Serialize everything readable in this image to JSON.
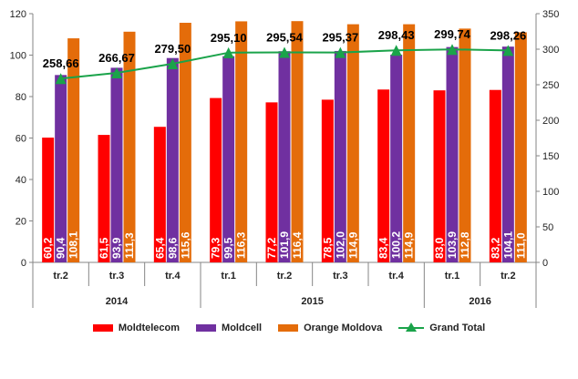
{
  "chart_data": {
    "type": "bar",
    "categories": [
      "tr.2",
      "tr.3",
      "tr.4",
      "tr.1",
      "tr.2",
      "tr.3",
      "tr.4",
      "tr.1",
      "tr.2"
    ],
    "year_groups": [
      {
        "label": "2014",
        "span": [
          0,
          2
        ]
      },
      {
        "label": "2015",
        "span": [
          3,
          6
        ]
      },
      {
        "label": "2016",
        "span": [
          7,
          8
        ]
      }
    ],
    "series": [
      {
        "name": "Moldtelecom",
        "kind": "bar",
        "color": "#ff0000",
        "values": [
          60.2,
          61.5,
          65.4,
          79.3,
          77.2,
          78.5,
          83.4,
          83.0,
          83.2
        ],
        "labels": [
          "60,2",
          "61,5",
          "65,4",
          "79,3",
          "77,2",
          "78,5",
          "83,4",
          "83,0",
          "83,2"
        ]
      },
      {
        "name": "Moldcell",
        "kind": "bar",
        "color": "#7030a0",
        "values": [
          90.4,
          93.9,
          98.6,
          99.5,
          101.9,
          102.0,
          100.2,
          103.9,
          104.1
        ],
        "labels": [
          "90,4",
          "93,9",
          "98,6",
          "99,5",
          "101,9",
          "102,0",
          "100,2",
          "103,9",
          "104,1"
        ]
      },
      {
        "name": "Orange Moldova",
        "kind": "bar",
        "color": "#e46c0a",
        "values": [
          108.1,
          111.3,
          115.6,
          116.3,
          116.4,
          114.9,
          114.9,
          112.8,
          111.0
        ],
        "labels": [
          "108,1",
          "111,3",
          "115,6",
          "116,3",
          "116,4",
          "114,9",
          "114,9",
          "112,8",
          "111,0"
        ]
      },
      {
        "name": "Grand Total",
        "kind": "line",
        "axis": "right",
        "color": "#1aa34a",
        "values": [
          258.66,
          266.67,
          279.5,
          295.1,
          295.54,
          295.37,
          298.43,
          299.74,
          298.26
        ],
        "labels": [
          "258,66",
          "266,67",
          "279,50",
          "295,10",
          "295,54",
          "295,37",
          "298,43",
          "299,74",
          "298,26"
        ]
      }
    ],
    "left_axis": {
      "ylim": [
        0,
        120
      ],
      "ticks": [
        0,
        20,
        40,
        60,
        80,
        100,
        120
      ],
      "tick_labels": [
        "0",
        "20",
        "40",
        "60",
        "80",
        "100",
        "120"
      ]
    },
    "right_axis": {
      "ylim": [
        0,
        350
      ],
      "ticks": [
        0,
        50,
        100,
        150,
        200,
        250,
        300,
        350
      ],
      "tick_labels": [
        "0",
        "50",
        "100",
        "150",
        "200",
        "250",
        "300",
        "350"
      ]
    },
    "legend_position": "bottom",
    "grid": false,
    "title": "",
    "xlabel": "",
    "ylabel": ""
  }
}
